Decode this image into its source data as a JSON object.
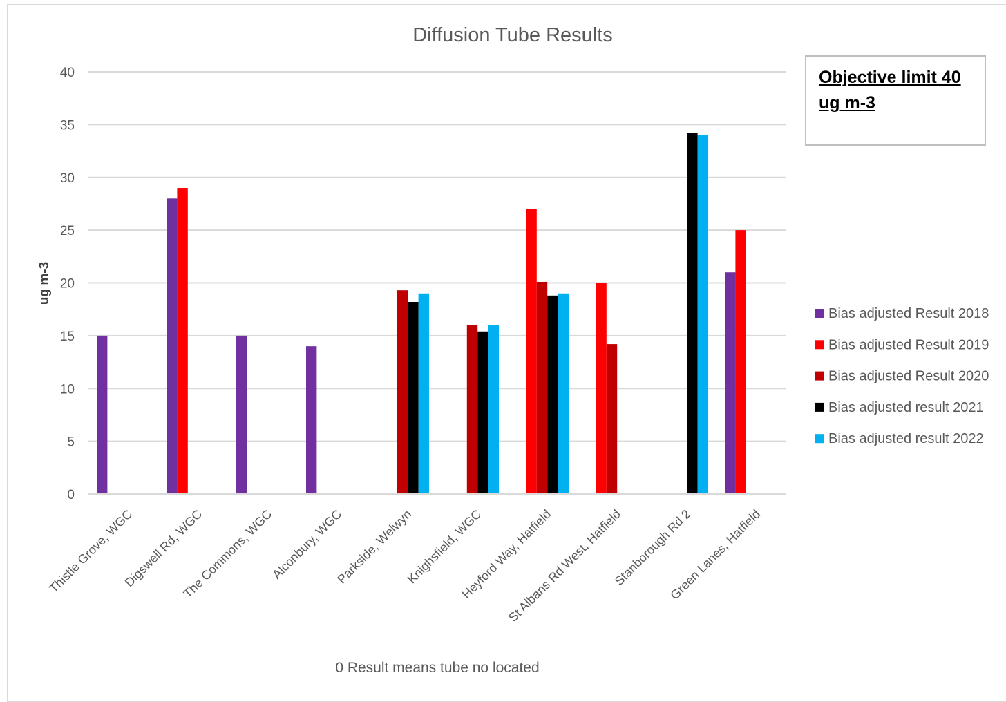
{
  "chart_data": {
    "type": "bar",
    "title": "Diffusion Tube Results",
    "xlabel": "",
    "ylabel": "ug m-3",
    "ylim": [
      0,
      40
    ],
    "yticks": [
      0,
      5,
      10,
      15,
      20,
      25,
      30,
      35,
      40
    ],
    "grid": true,
    "legend_position": "right",
    "categories": [
      "Thistle Grove, WGC",
      "Digswell Rd, WGC",
      "The Commons, WGC",
      "Alconbury, WGC",
      "Parkside, Welwyn",
      "Knighsfield, WGC",
      "Heyford Way, Hatfield",
      "St Albans Rd West, Hatfield",
      "Stanborough Rd 2",
      "Green Lanes, Hatfield"
    ],
    "series": [
      {
        "name": "Bias adjusted Result 2018",
        "color": "#7030a0",
        "values": [
          15,
          28,
          15,
          14,
          0,
          0,
          0,
          0,
          0,
          21
        ]
      },
      {
        "name": "Bias adjusted Result 2019",
        "color": "#ff0000",
        "values": [
          0,
          29,
          0,
          0,
          0,
          0,
          27,
          20,
          0,
          25
        ]
      },
      {
        "name": "Bias adjusted Result 2020",
        "color": "#c00000",
        "values": [
          0,
          0,
          0,
          0,
          19.3,
          16,
          20.1,
          14.2,
          0,
          0
        ]
      },
      {
        "name": "Bias adjusted result 2021",
        "color": "#000000",
        "values": [
          0,
          0,
          0,
          0,
          18.2,
          15.4,
          18.8,
          0,
          34.2,
          0
        ]
      },
      {
        "name": "Bias adjusted result 2022",
        "color": "#00b0f0",
        "values": [
          0,
          0,
          0,
          0,
          19,
          16,
          19,
          0,
          34,
          0
        ]
      }
    ],
    "annotations": {
      "objective_box": "Objective limit  40 ug m-3",
      "footnote": "0 Result  means tube no located"
    }
  }
}
